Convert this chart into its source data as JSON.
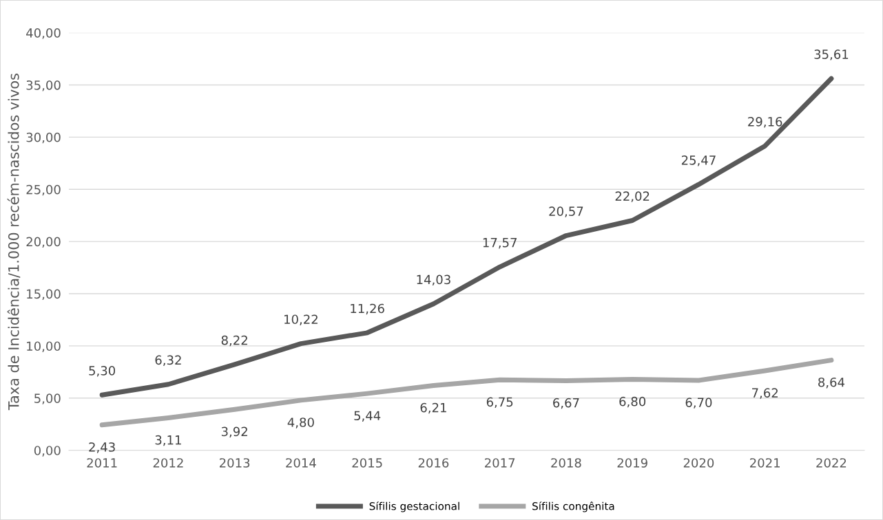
{
  "chart_data": {
    "type": "line",
    "ylabel": "Taxa de Incidência/1.000 recém-nascidos vivos",
    "categories": [
      "2011",
      "2012",
      "2013",
      "2014",
      "2015",
      "2016",
      "2017",
      "2018",
      "2019",
      "2020",
      "2021",
      "2022"
    ],
    "series": [
      {
        "name": "Sífilis gestacional",
        "color": "#595959",
        "values": [
          5.3,
          6.32,
          8.22,
          10.22,
          11.26,
          14.03,
          17.57,
          20.57,
          22.02,
          25.47,
          29.16,
          35.61
        ],
        "value_labels": [
          "5,30",
          "6,32",
          "8,22",
          "10,22",
          "11,26",
          "14,03",
          "17,57",
          "20,57",
          "22,02",
          "25,47",
          "29,16",
          "35,61"
        ]
      },
      {
        "name": "Sífilis congênita",
        "color": "#a6a6a6",
        "values": [
          2.43,
          3.11,
          3.92,
          4.8,
          5.44,
          6.21,
          6.75,
          6.67,
          6.8,
          6.7,
          7.62,
          8.64
        ],
        "value_labels": [
          "2,43",
          "3,11",
          "3,92",
          "4,80",
          "5,44",
          "6,21",
          "6,75",
          "6,67",
          "6,80",
          "6,70",
          "7,62",
          "8,64"
        ]
      }
    ],
    "ylim": [
      0,
      40
    ],
    "yticks": [
      {
        "value": 0,
        "label": "0,00"
      },
      {
        "value": 5,
        "label": "5,00"
      },
      {
        "value": 10,
        "label": "10,00"
      },
      {
        "value": 15,
        "label": "15,00"
      },
      {
        "value": 20,
        "label": "20,00"
      },
      {
        "value": 25,
        "label": "25,00"
      },
      {
        "value": 30,
        "label": "30,00"
      },
      {
        "value": 35,
        "label": "35,00"
      },
      {
        "value": 40,
        "label": "40,00"
      }
    ],
    "grid": "y",
    "legend": "bottom",
    "marker": "none",
    "line_style": "solid"
  }
}
